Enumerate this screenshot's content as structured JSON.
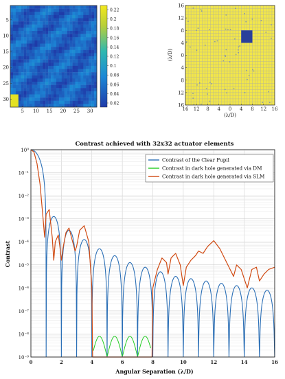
{
  "figure_panels": [
    {
      "name": "actuator-heatmap",
      "x_ticks": [
        "5",
        "10",
        "15",
        "20",
        "25",
        "30"
      ],
      "y_ticks": [
        "5",
        "10",
        "15",
        "20",
        "25",
        "30"
      ],
      "colorbar_ticks": [
        "0.22",
        "0.2",
        "0.18",
        "0.16",
        "0.14",
        "0.12",
        "0.1",
        "0.08",
        "0.06",
        "0.04",
        "0.02"
      ]
    },
    {
      "name": "dark-hole-map",
      "x_ticks": [
        "16",
        "12",
        "8",
        "4",
        "0",
        "4",
        "8",
        "12",
        "16"
      ],
      "y_ticks": [
        "16",
        "12",
        "8",
        "4",
        "0",
        "4",
        "8",
        "12",
        "16"
      ],
      "xlabel": "(λ/D)",
      "ylabel": "(λ/D)"
    }
  ],
  "chart_data": {
    "type": "line",
    "title": "Contrast achieved with 32x32 actuator elements",
    "xlabel": "Angular Separation (λ/D)",
    "ylabel": "Contrast",
    "xlim": [
      0,
      16
    ],
    "ylim_log10": [
      -9,
      0
    ],
    "y_scale": "log",
    "grid": true,
    "legend_position": "top-right",
    "x_ticks": [
      "0",
      "2",
      "4",
      "6",
      "8",
      "10",
      "12",
      "14",
      "16"
    ],
    "y_ticks": [
      "10⁰",
      "10⁻¹",
      "10⁻²",
      "10⁻³",
      "10⁻⁴",
      "10⁻⁵",
      "10⁻⁶",
      "10⁻⁷",
      "10⁻⁸",
      "10⁻⁹"
    ],
    "series": [
      {
        "name": "Contrast of the Clear Pupil",
        "color": "#2b6fb6",
        "sidelobe_peaks_log10": [
          [
            1.5,
            -2.9
          ],
          [
            2.5,
            -3.5
          ],
          [
            3.5,
            -3.9
          ],
          [
            4.5,
            -4.3
          ],
          [
            5.5,
            -4.6
          ],
          [
            6.5,
            -4.9
          ],
          [
            7.5,
            -5.1
          ],
          [
            8.5,
            -5.3
          ],
          [
            9.5,
            -5.5
          ],
          [
            10.5,
            -5.6
          ],
          [
            11.5,
            -5.7
          ],
          [
            12.5,
            -5.8
          ],
          [
            13.5,
            -5.9
          ],
          [
            14.5,
            -6.0
          ],
          [
            15.5,
            -6.1
          ]
        ]
      },
      {
        "name": "Contrast in dark hole generated via DM",
        "color": "#22cc22",
        "dark_hole_range": [
          4.1,
          7.9
        ],
        "level_log10": -8.5
      },
      {
        "name": "Contrast in dark hole generated via SLM",
        "color": "#d04a12",
        "points_log10": [
          [
            0.0,
            0.0
          ],
          [
            0.2,
            -0.1
          ],
          [
            0.4,
            -0.6
          ],
          [
            0.6,
            -1.5
          ],
          [
            0.8,
            -3.0
          ],
          [
            0.9,
            -3.8
          ],
          [
            1.0,
            -2.8
          ],
          [
            1.2,
            -2.6
          ],
          [
            1.4,
            -3.8
          ],
          [
            1.5,
            -4.8
          ],
          [
            1.6,
            -4.0
          ],
          [
            1.8,
            -3.7
          ],
          [
            1.9,
            -4.2
          ],
          [
            2.0,
            -4.8
          ],
          [
            2.1,
            -4.3
          ],
          [
            2.3,
            -3.6
          ],
          [
            2.5,
            -3.4
          ],
          [
            2.7,
            -3.9
          ],
          [
            2.9,
            -4.4
          ],
          [
            3.0,
            -4.2
          ],
          [
            3.2,
            -3.5
          ],
          [
            3.5,
            -3.3
          ],
          [
            3.8,
            -4.0
          ],
          [
            4.0,
            -6.0
          ],
          [
            4.05,
            -9.0
          ],
          [
            7.95,
            -9.0
          ],
          [
            8.0,
            -6.0
          ],
          [
            8.3,
            -5.2
          ],
          [
            8.6,
            -4.7
          ],
          [
            8.9,
            -4.9
          ],
          [
            9.0,
            -5.4
          ],
          [
            9.2,
            -4.7
          ],
          [
            9.5,
            -4.5
          ],
          [
            9.8,
            -5.0
          ],
          [
            10.0,
            -5.9
          ],
          [
            10.2,
            -5.1
          ],
          [
            10.5,
            -4.8
          ],
          [
            10.8,
            -4.6
          ],
          [
            11.0,
            -4.4
          ],
          [
            11.3,
            -4.5
          ],
          [
            11.6,
            -4.2
          ],
          [
            12.0,
            -3.95
          ],
          [
            12.4,
            -4.3
          ],
          [
            12.7,
            -4.7
          ],
          [
            13.0,
            -5.1
          ],
          [
            13.3,
            -5.5
          ],
          [
            13.5,
            -5.0
          ],
          [
            13.8,
            -5.2
          ],
          [
            14.0,
            -5.6
          ],
          [
            14.2,
            -6.0
          ],
          [
            14.5,
            -5.2
          ],
          [
            14.8,
            -5.1
          ],
          [
            15.0,
            -5.7
          ],
          [
            15.3,
            -5.4
          ],
          [
            15.6,
            -5.2
          ],
          [
            16.0,
            -5.1
          ]
        ]
      }
    ]
  }
}
